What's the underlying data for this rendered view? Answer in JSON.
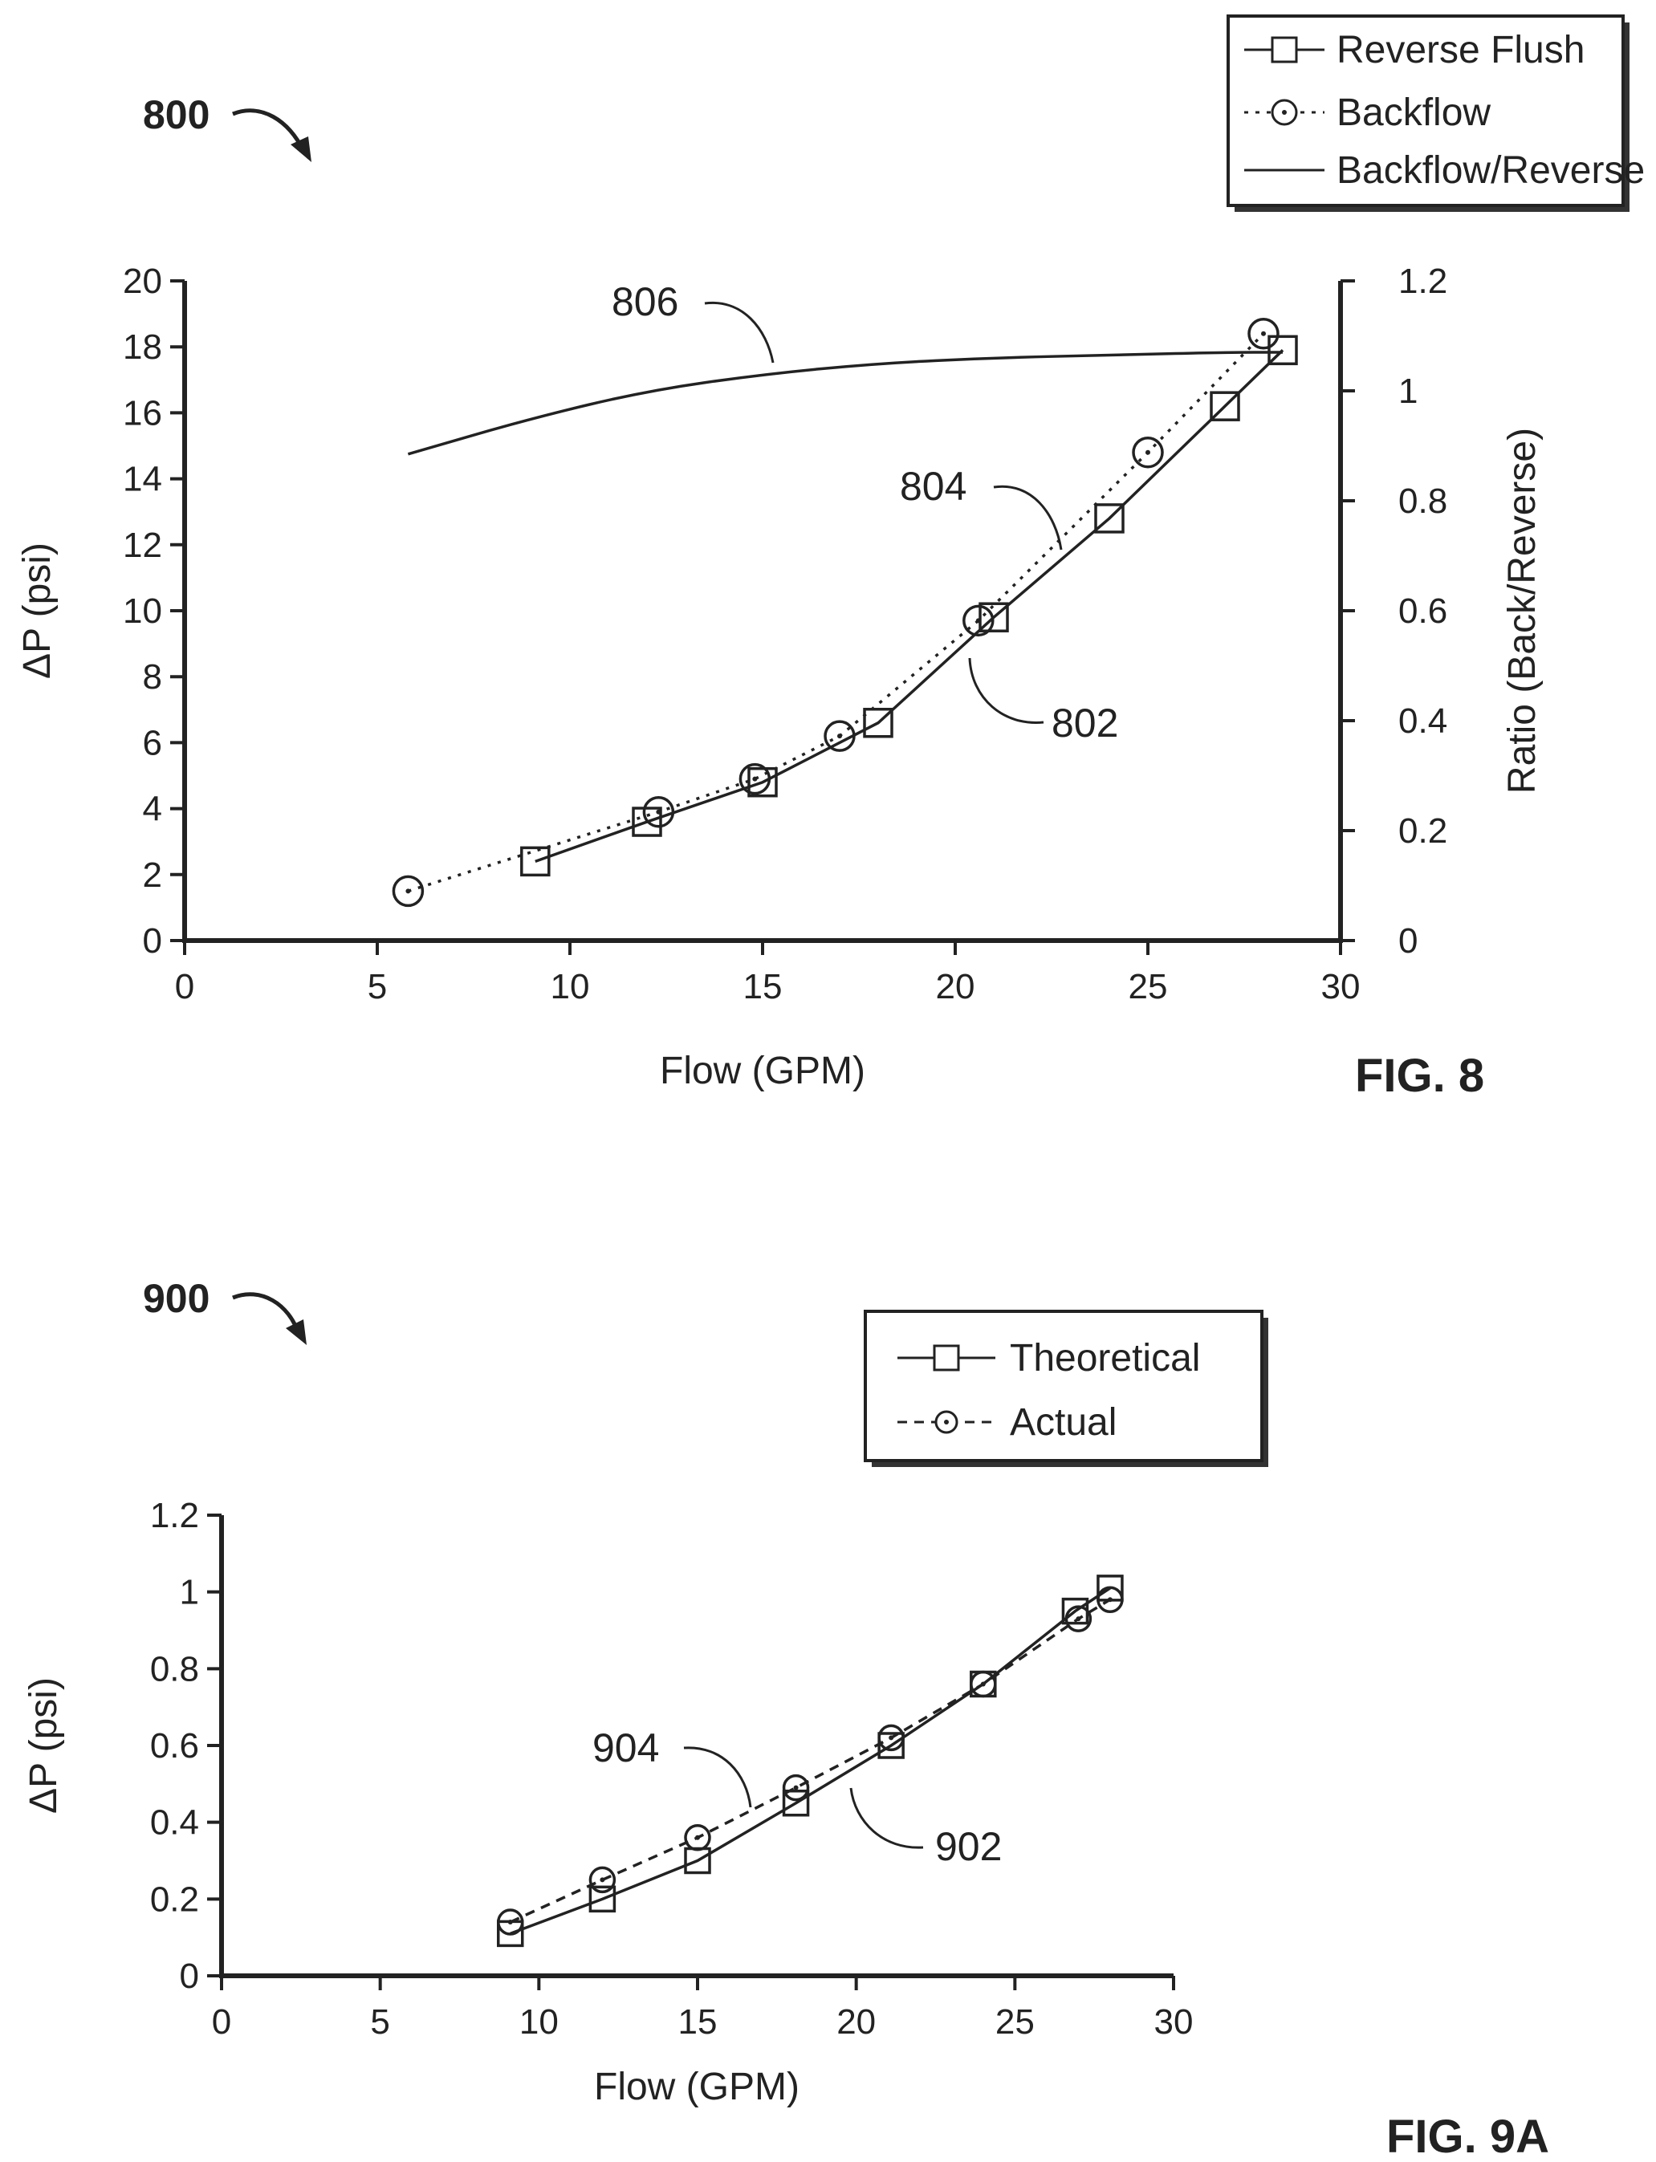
{
  "chart_data": [
    {
      "type": "line",
      "figure_label": "FIG. 8",
      "reference_number": "800",
      "xlabel": "Flow (GPM)",
      "ylabel": "ΔP (psi)",
      "y2label": "Ratio (Back/Reverse)",
      "xlim": [
        0,
        30
      ],
      "ylim": [
        0,
        20
      ],
      "y2lim": [
        0,
        1.2
      ],
      "x_ticks": [
        "0",
        "5",
        "10",
        "15",
        "20",
        "25",
        "30"
      ],
      "y_ticks": [
        "0",
        "2",
        "4",
        "6",
        "8",
        "10",
        "12",
        "14",
        "16",
        "18",
        "20"
      ],
      "y2_ticks": [
        "0",
        "0.2",
        "0.4",
        "0.6",
        "0.8",
        "1",
        "1.2"
      ],
      "grid": false,
      "legend_position": "top-right",
      "series": [
        {
          "name": "Reverse Flush",
          "style": "solid",
          "marker": "square",
          "callout": "802",
          "axis": "left",
          "x": [
            9.1,
            12.0,
            15.0,
            18.0,
            21.0,
            24.0,
            27.0,
            28.5
          ],
          "y": [
            2.4,
            3.6,
            4.8,
            6.6,
            9.8,
            12.8,
            16.2,
            17.9
          ]
        },
        {
          "name": "Backflow",
          "style": "dotted",
          "marker": "circle",
          "callout": "804",
          "axis": "left",
          "x": [
            5.8,
            12.3,
            14.8,
            17.0,
            20.6,
            25.0,
            28.0
          ],
          "y": [
            1.5,
            3.9,
            4.9,
            6.2,
            9.7,
            14.8,
            18.4
          ]
        },
        {
          "name": "Backflow/Reverse",
          "style": "solid",
          "marker": "none",
          "callout": "806",
          "axis": "right",
          "x": [
            5.8,
            9.0,
            12.0,
            15.0,
            18.0,
            21.0,
            24.0,
            27.0,
            28.5
          ],
          "y": [
            0.885,
            0.95,
            1.0,
            1.03,
            1.05,
            1.06,
            1.065,
            1.07,
            1.07
          ]
        }
      ]
    },
    {
      "type": "line",
      "figure_label": "FIG. 9A",
      "reference_number": "900",
      "xlabel": "Flow (GPM)",
      "ylabel": "ΔP (psi)",
      "xlim": [
        0,
        30
      ],
      "ylim": [
        0,
        1.2
      ],
      "x_ticks": [
        "0",
        "5",
        "10",
        "15",
        "20",
        "25",
        "30"
      ],
      "y_ticks": [
        "0",
        "0.2",
        "0.4",
        "0.6",
        "0.8",
        "1",
        "1.2"
      ],
      "grid": false,
      "legend_position": "top-right",
      "series": [
        {
          "name": "Theoretical",
          "style": "solid",
          "marker": "square",
          "callout": "902",
          "x": [
            9.1,
            12.0,
            15.0,
            18.1,
            21.1,
            24.0,
            26.9,
            28.0
          ],
          "y": [
            0.11,
            0.2,
            0.3,
            0.45,
            0.6,
            0.76,
            0.95,
            1.01
          ]
        },
        {
          "name": "Actual",
          "style": "dashed",
          "marker": "circle",
          "callout": "904",
          "x": [
            9.1,
            12.0,
            15.0,
            18.1,
            21.1,
            24.0,
            27.0,
            28.0
          ],
          "y": [
            0.14,
            0.25,
            0.36,
            0.49,
            0.62,
            0.76,
            0.93,
            0.98
          ]
        }
      ]
    }
  ]
}
